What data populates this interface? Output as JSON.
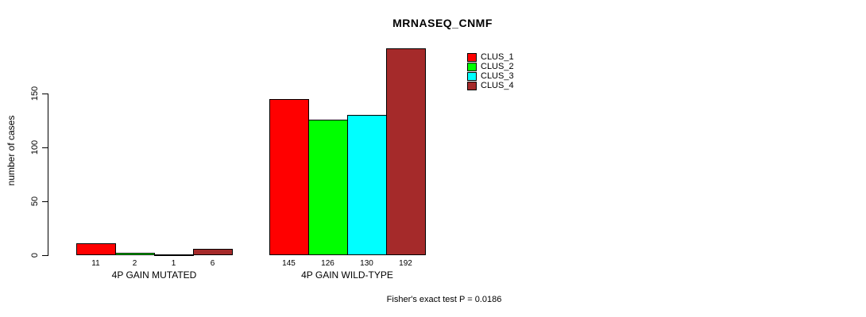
{
  "chart_data": {
    "type": "bar",
    "title": "MRNASEQ_CNMF",
    "ylabel": "number of cases",
    "xlabel": "",
    "categories": [
      "4P GAIN MUTATED",
      "4P GAIN WILD-TYPE"
    ],
    "series": [
      {
        "name": "CLUS_1",
        "color": "#FF0000",
        "values": [
          11,
          145
        ]
      },
      {
        "name": "CLUS_2",
        "color": "#00FF00",
        "values": [
          2,
          126
        ]
      },
      {
        "name": "CLUS_3",
        "color": "#00FFFF",
        "values": [
          1,
          130
        ]
      },
      {
        "name": "CLUS_4",
        "color": "#A52A2A",
        "values": [
          6,
          192
        ]
      }
    ],
    "yticks": [
      0,
      50,
      100,
      150
    ],
    "ylim": [
      0,
      150
    ],
    "grid": false,
    "bar_value_labels": true,
    "bar_border_color": "#000000",
    "legend_position": "top-right",
    "legend_entries": [
      "CLUS_1",
      "CLUS_2",
      "CLUS_3",
      "CLUS_4"
    ],
    "annotation": "Fisher's exact test P = 0.0186"
  }
}
